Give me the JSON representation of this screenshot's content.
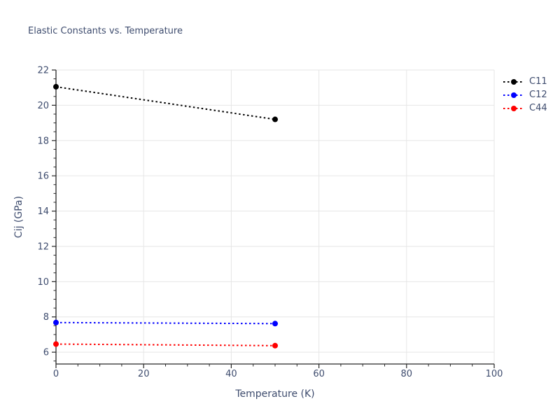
{
  "colors": {
    "text": "#3e4c6e",
    "grid": "#e6e6e6",
    "axis": "#262626",
    "background": "#ffffff"
  },
  "chart_data": {
    "type": "line",
    "title": "Elastic Constants vs. Temperature",
    "xlabel": "Temperature (K)",
    "ylabel": "Cij (GPa)",
    "xlim": [
      0,
      100
    ],
    "ylim": [
      5.33,
      22
    ],
    "xticks": [
      0,
      20,
      40,
      60,
      80,
      100
    ],
    "yticks": [
      6,
      8,
      10,
      12,
      14,
      16,
      18,
      20,
      22
    ],
    "x_minor_step": 5,
    "y_minor_step": 0.5,
    "grid": true,
    "legend_position": "outside-right",
    "line_style": "dotted",
    "marker": "circle",
    "x": [
      0,
      50
    ],
    "series": [
      {
        "name": "C11",
        "color": "#000000",
        "values": [
          21.05,
          19.2
        ]
      },
      {
        "name": "C12",
        "color": "#0000ff",
        "values": [
          7.68,
          7.62
        ]
      },
      {
        "name": "C44",
        "color": "#ff0000",
        "values": [
          6.46,
          6.37
        ]
      }
    ]
  }
}
